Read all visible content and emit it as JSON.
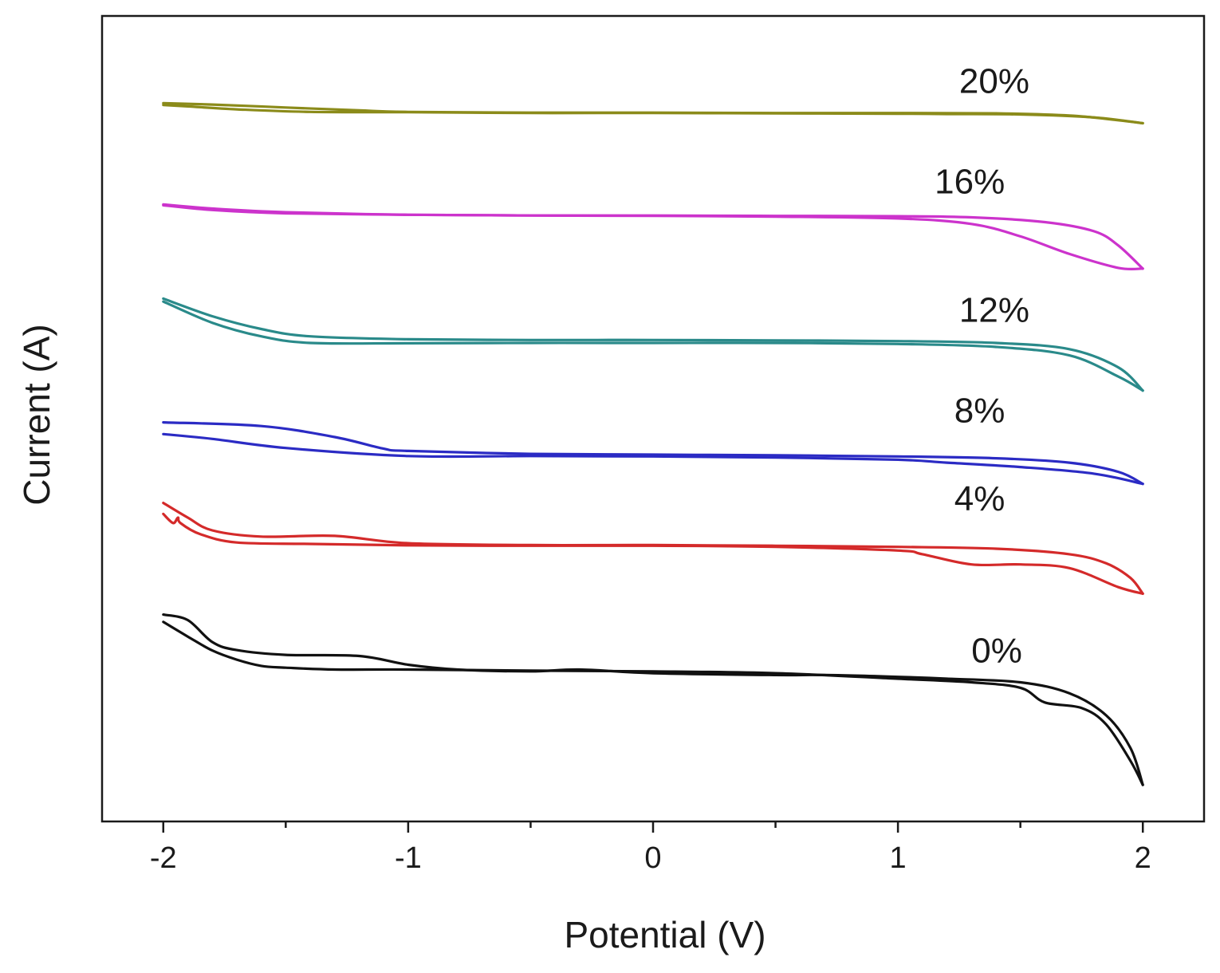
{
  "chart_data": {
    "type": "line",
    "title": "",
    "xlabel": "Potential (V)",
    "ylabel": "Current (A)",
    "xlim": [
      -2.25,
      2.25
    ],
    "ylim": [
      -20.0,
      2.0
    ],
    "xticks": [
      -2,
      -1,
      0,
      1,
      2
    ],
    "xtick_labels": [
      "-2",
      "-1",
      "0",
      "1",
      "2"
    ],
    "xminor_ticks": [
      -1.5,
      -0.5,
      0.5,
      1.5
    ],
    "yticks_shown": false,
    "grid": false,
    "legend": "inline labels beside each curve",
    "note": "Current values are offset-stacked in arbitrary units; the y axis has no tick labels.",
    "series": [
      {
        "name": "20%",
        "color": "#8b8b1a",
        "label_at": [
          1.25,
          -0.1
        ],
        "forward": {
          "x": [
            -2.0,
            -1.8,
            -1.5,
            -1.2,
            -1.0,
            -0.5,
            0.0,
            0.5,
            1.0,
            1.4,
            1.7,
            1.9,
            2.0
          ],
          "y": [
            -0.38,
            -0.42,
            -0.5,
            -0.58,
            -0.62,
            -0.64,
            -0.64,
            -0.65,
            -0.65,
            -0.66,
            -0.72,
            -0.85,
            -0.93
          ]
        },
        "reverse": {
          "x": [
            2.0,
            1.8,
            1.5,
            1.2,
            1.0,
            0.5,
            0.0,
            -0.5,
            -1.0,
            -1.4,
            -1.7,
            -1.9,
            -2.0
          ],
          "y": [
            -0.93,
            -0.77,
            -0.69,
            -0.68,
            -0.67,
            -0.66,
            -0.65,
            -0.65,
            -0.63,
            -0.62,
            -0.55,
            -0.47,
            -0.43
          ]
        }
      },
      {
        "name": "16%",
        "color": "#cc33cc",
        "label_at": [
          1.15,
          -2.85
        ],
        "forward": {
          "x": [
            -2.0,
            -1.8,
            -1.5,
            -1.0,
            -0.5,
            0.0,
            0.5,
            1.0,
            1.3,
            1.6,
            1.8,
            1.9,
            2.0
          ],
          "y": [
            -3.15,
            -3.26,
            -3.36,
            -3.43,
            -3.45,
            -3.45,
            -3.46,
            -3.47,
            -3.5,
            -3.63,
            -3.88,
            -4.27,
            -4.9
          ]
        },
        "reverse": {
          "x": [
            2.0,
            1.9,
            1.7,
            1.5,
            1.3,
            1.0,
            0.5,
            0.0,
            -0.5,
            -1.0,
            -1.5,
            -1.8,
            -2.0
          ],
          "y": [
            -4.9,
            -4.88,
            -4.5,
            -4.02,
            -3.68,
            -3.53,
            -3.48,
            -3.46,
            -3.45,
            -3.43,
            -3.39,
            -3.3,
            -3.17
          ]
        }
      },
      {
        "name": "12%",
        "color": "#2a8a8a",
        "label_at": [
          1.25,
          -6.35
        ],
        "forward": {
          "x": [
            -2.0,
            -1.8,
            -1.6,
            -1.4,
            -1.0,
            -0.5,
            0.0,
            0.5,
            1.0,
            1.4,
            1.7,
            1.9,
            2.0
          ],
          "y": [
            -5.72,
            -6.2,
            -6.55,
            -6.75,
            -6.83,
            -6.85,
            -6.85,
            -6.86,
            -6.88,
            -6.93,
            -7.1,
            -7.6,
            -8.23
          ]
        },
        "reverse": {
          "x": [
            2.0,
            1.9,
            1.7,
            1.4,
            1.0,
            0.5,
            0.0,
            -0.5,
            -1.0,
            -1.4,
            -1.6,
            -1.8,
            -2.0
          ],
          "y": [
            -8.23,
            -7.85,
            -7.27,
            -7.04,
            -6.96,
            -6.93,
            -6.93,
            -6.93,
            -6.94,
            -6.93,
            -6.75,
            -6.38,
            -5.8
          ]
        }
      },
      {
        "name": "8%",
        "color": "#2b2bc4",
        "label_at": [
          1.23,
          -9.1
        ],
        "forward": {
          "x": [
            -2.0,
            -1.6,
            -1.3,
            -1.1,
            -1.0,
            -0.5,
            0.0,
            0.5,
            1.0,
            1.4,
            1.7,
            1.9,
            2.0
          ],
          "y": [
            -9.1,
            -9.2,
            -9.5,
            -9.82,
            -9.88,
            -9.96,
            -9.98,
            -10.0,
            -10.03,
            -10.08,
            -10.2,
            -10.45,
            -10.78
          ]
        },
        "reverse": {
          "x": [
            2.0,
            1.8,
            1.5,
            1.2,
            1.0,
            0.5,
            0.0,
            -0.5,
            -1.0,
            -1.5,
            -1.8,
            -2.0
          ],
          "y": [
            -10.78,
            -10.5,
            -10.32,
            -10.2,
            -10.12,
            -10.06,
            -10.03,
            -10.02,
            -10.02,
            -9.8,
            -9.55,
            -9.42
          ]
        }
      },
      {
        "name": "4%",
        "color": "#d42a2a",
        "label_at": [
          1.23,
          -11.5
        ],
        "forward": {
          "x": [
            -2.0,
            -1.9,
            -1.8,
            -1.6,
            -1.3,
            -1.0,
            -0.5,
            0.0,
            0.5,
            1.0,
            1.4,
            1.7,
            1.85,
            1.95,
            2.0
          ],
          "y": [
            -11.3,
            -11.7,
            -12.05,
            -12.22,
            -12.2,
            -12.4,
            -12.45,
            -12.45,
            -12.47,
            -12.5,
            -12.55,
            -12.7,
            -12.95,
            -13.35,
            -13.78
          ]
        },
        "reverse": {
          "x": [
            2.0,
            1.9,
            1.7,
            1.5,
            1.3,
            1.1,
            1.0,
            0.5,
            0.0,
            -0.5,
            -1.0,
            -1.4,
            -1.7,
            -1.85,
            -1.93,
            -1.94,
            -1.96,
            -2.0
          ],
          "y": [
            -13.78,
            -13.6,
            -13.08,
            -12.98,
            -12.98,
            -12.7,
            -12.6,
            -12.5,
            -12.47,
            -12.47,
            -12.46,
            -12.42,
            -12.38,
            -12.15,
            -11.85,
            -11.7,
            -11.85,
            -11.6
          ]
        }
      },
      {
        "name": "0%",
        "color": "#111111",
        "label_at": [
          1.3,
          -15.65
        ],
        "forward": {
          "x": [
            -2.0,
            -1.9,
            -1.8,
            -1.7,
            -1.6,
            -1.5,
            -1.3,
            -1.0,
            -0.5,
            0.0,
            0.5,
            1.0,
            1.3,
            1.5,
            1.6,
            1.75,
            1.85,
            1.95,
            2.0
          ],
          "y": [
            -14.55,
            -14.95,
            -15.33,
            -15.58,
            -15.75,
            -15.8,
            -15.85,
            -15.85,
            -15.88,
            -15.9,
            -15.95,
            -16.1,
            -16.2,
            -16.35,
            -16.75,
            -16.9,
            -17.35,
            -18.35,
            -19.0
          ]
        },
        "reverse": {
          "x": [
            2.0,
            1.95,
            1.85,
            1.7,
            1.5,
            1.2,
            1.0,
            0.7,
            0.5,
            0.0,
            -0.3,
            -0.5,
            -0.8,
            -1.0,
            -1.2,
            -1.5,
            -1.7,
            -1.8,
            -1.9,
            -2.0
          ],
          "y": [
            -19.0,
            -18.0,
            -17.1,
            -16.5,
            -16.2,
            -16.1,
            -16.05,
            -16.0,
            -16.0,
            -15.95,
            -15.85,
            -15.9,
            -15.85,
            -15.72,
            -15.48,
            -15.45,
            -15.32,
            -15.1,
            -14.5,
            -14.35
          ]
        }
      }
    ]
  }
}
